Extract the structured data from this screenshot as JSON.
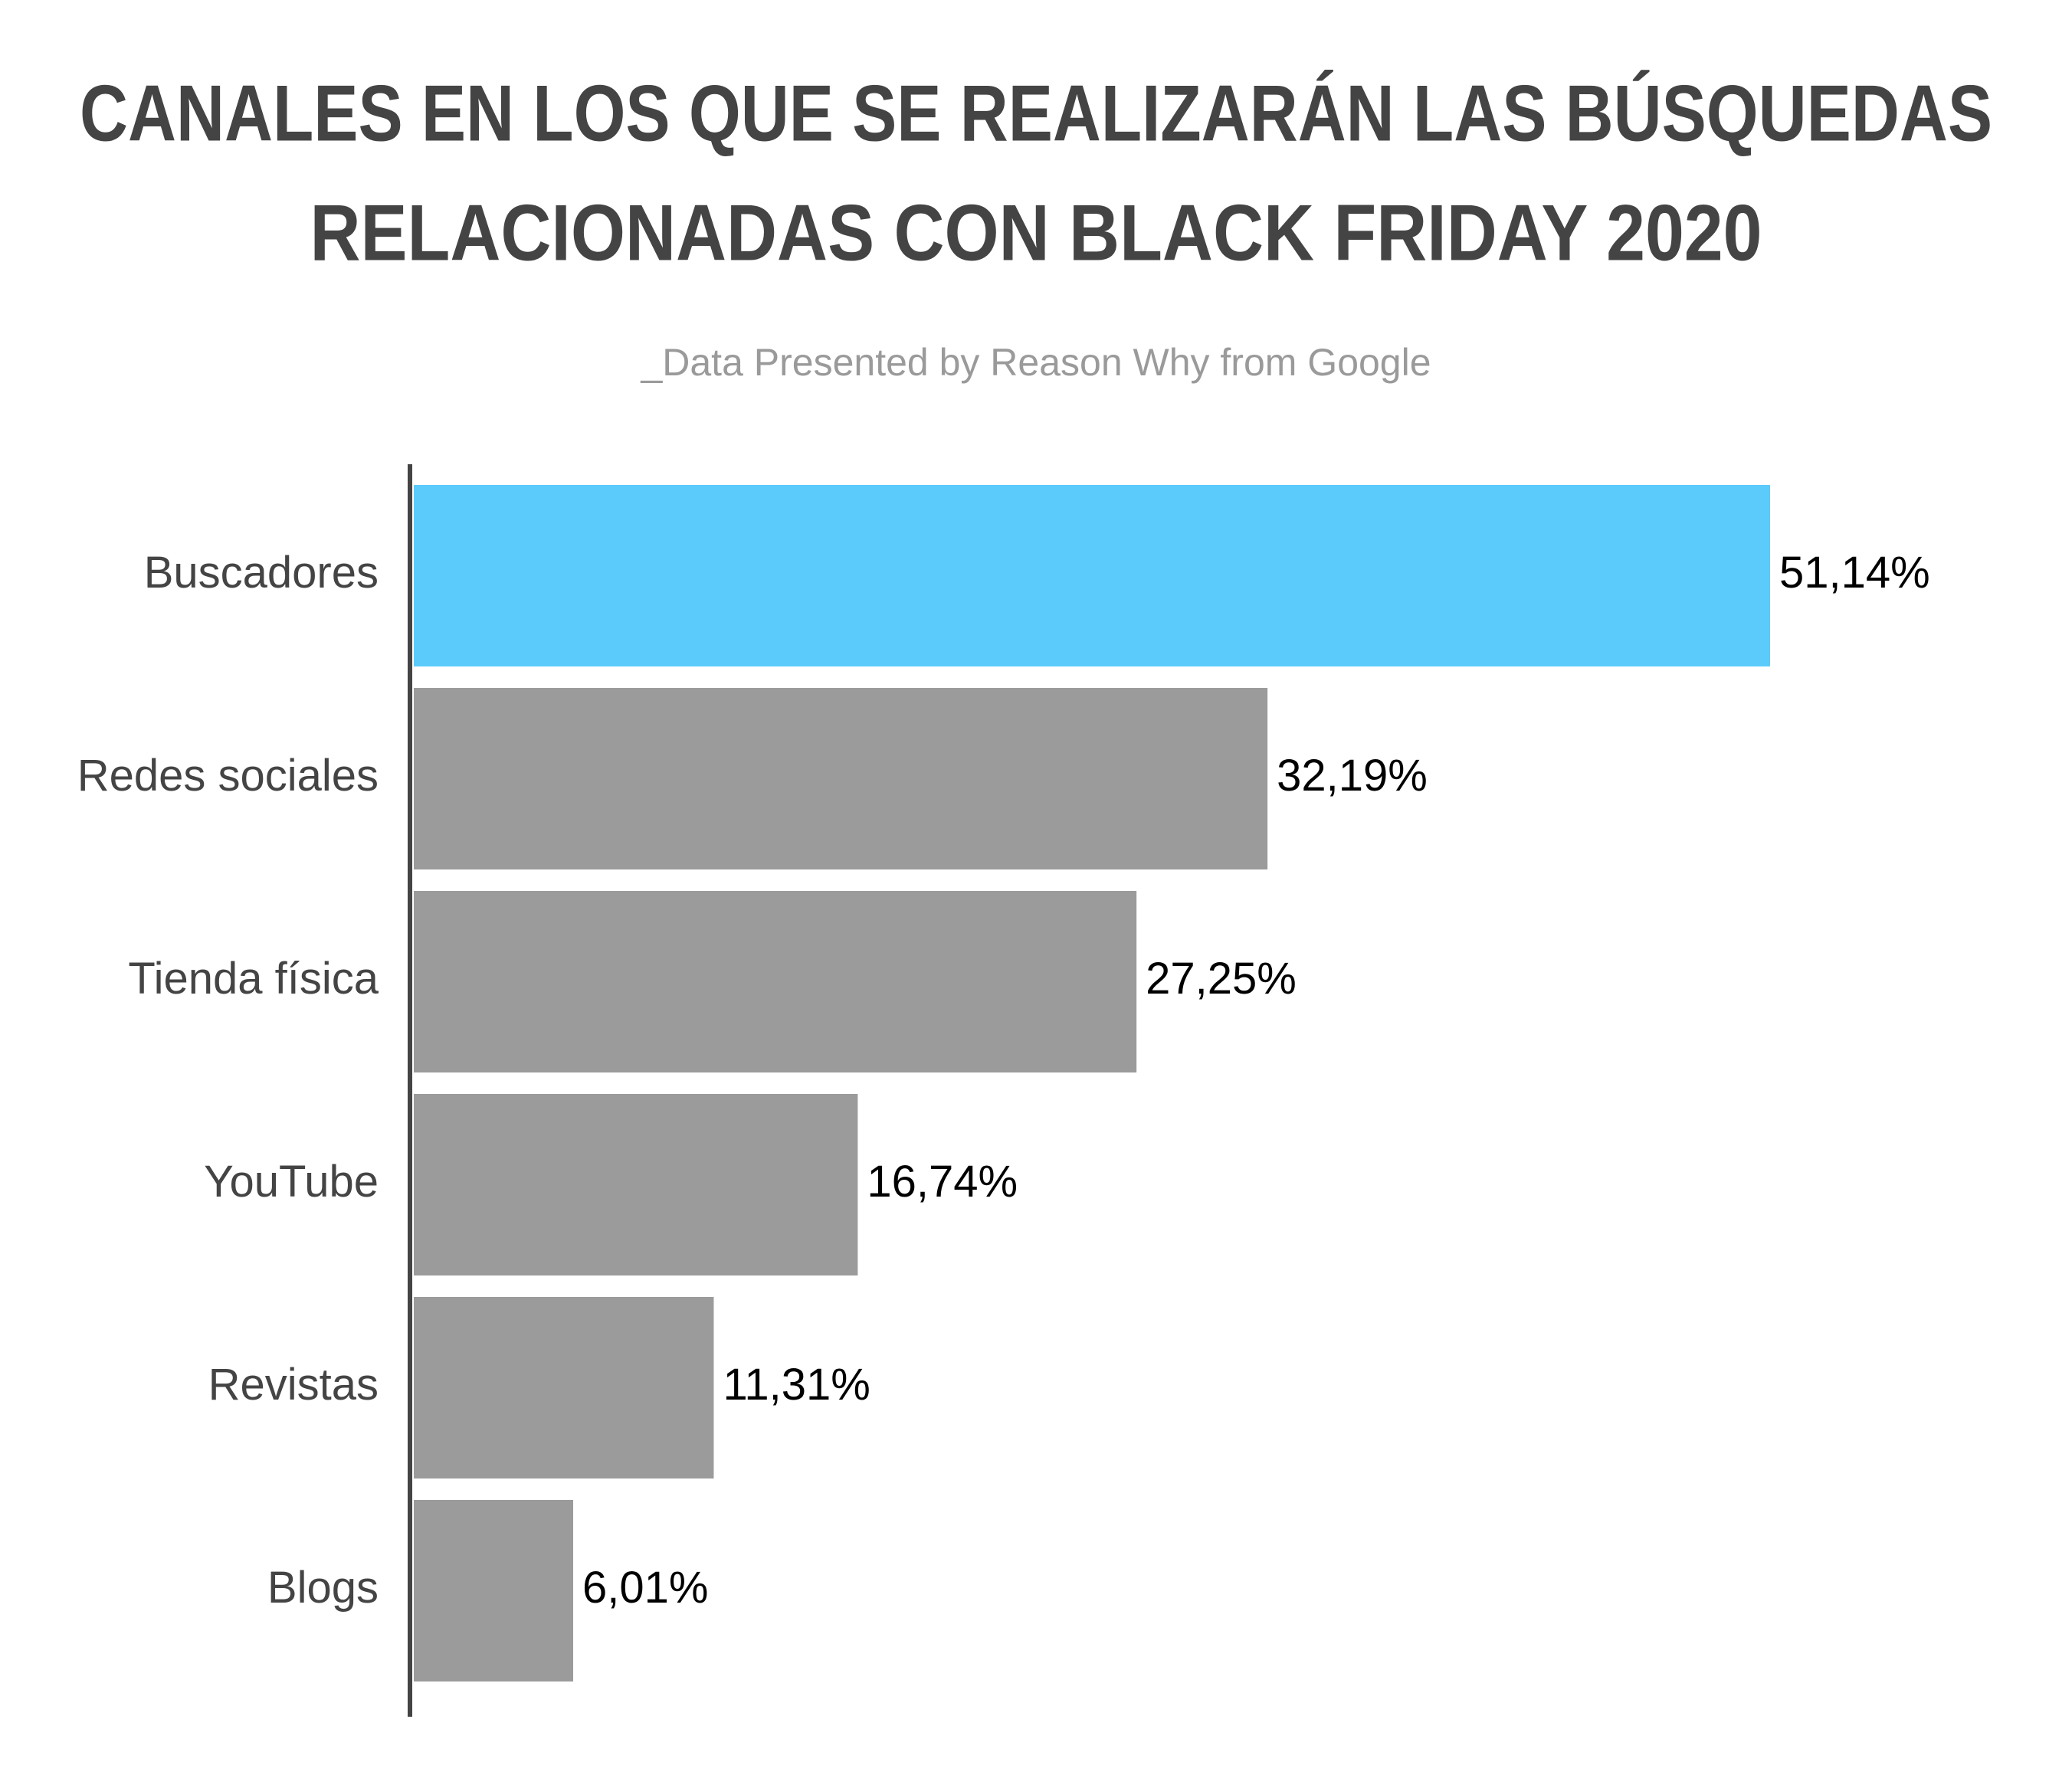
{
  "chart_data": {
    "type": "hbar",
    "title": [
      "CANALES EN LOS QUE SE REALIZARÁN LAS BÚSQUEDAS",
      "RELACIONADAS CON BLACK FRIDAY 2020"
    ],
    "subtitle": "_Data Presented by Reason Why from Google",
    "categories": [
      "Buscadores",
      "Redes sociales",
      "Tienda física",
      "YouTube",
      "Revistas",
      "Blogs"
    ],
    "values": [
      51.14,
      32.19,
      27.25,
      16.74,
      11.31,
      6.01
    ],
    "value_labels": [
      "51,14%",
      "32,19%",
      "27,25%",
      "16,74%",
      "11,31%",
      "6,01%"
    ],
    "colors": [
      "#5bcbfc",
      "#9b9b9b",
      "#9b9b9b",
      "#9b9b9b",
      "#9b9b9b",
      "#9b9b9b"
    ]
  }
}
